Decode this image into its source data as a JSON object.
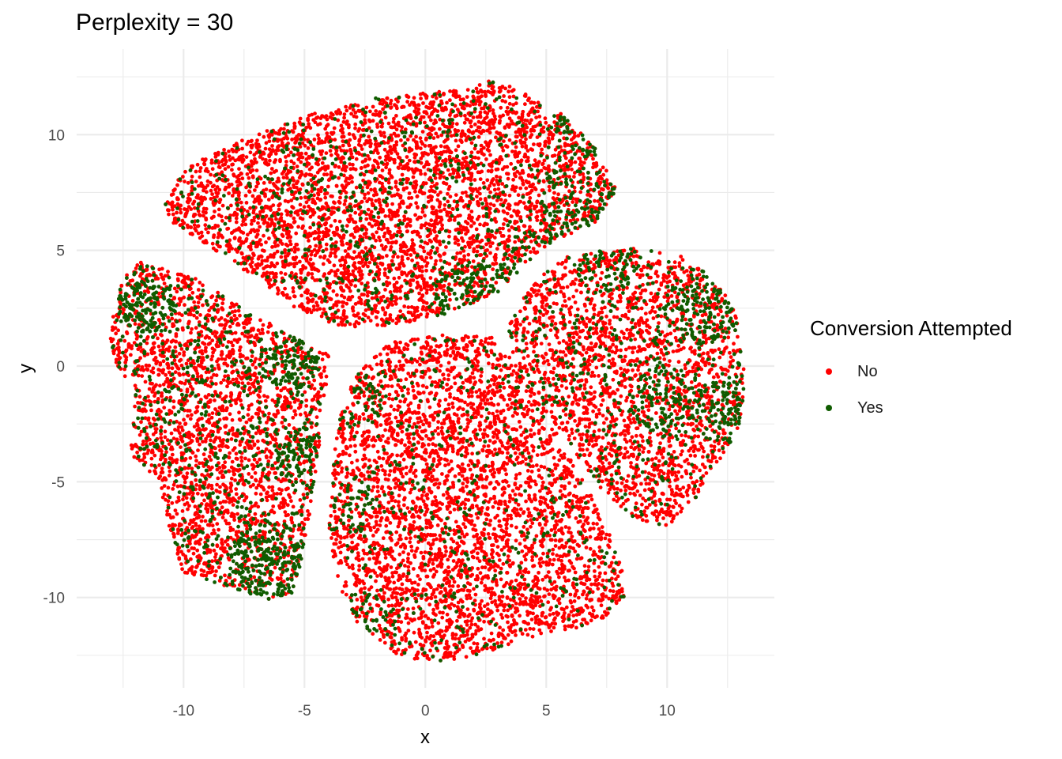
{
  "chart_data": {
    "type": "scatter",
    "title": "Perplexity = 30",
    "xlabel": "x",
    "ylabel": "y",
    "xlim": [
      -12.5,
      12.5
    ],
    "ylim": [
      -12.5,
      12.5
    ],
    "x_ticks": [
      -10,
      -5,
      0,
      5,
      10
    ],
    "y_ticks": [
      -10,
      -5,
      0,
      5,
      10
    ],
    "grid": true,
    "legend": {
      "title": "Conversion Attempted",
      "position": "right",
      "entries": [
        {
          "label": "No",
          "color": "#ff0000"
        },
        {
          "label": "Yes",
          "color": "#0f5c00"
        }
      ]
    },
    "series": [
      {
        "name": "No",
        "color": "#ff0000"
      },
      {
        "name": "Yes",
        "color": "#0f5c00"
      }
    ],
    "clusters": [
      {
        "name": "top",
        "x_range": [
          -10.8,
          7.9
        ],
        "y_range": [
          1.6,
          12.4
        ],
        "points_no": 4200,
        "points_yes": 900
      },
      {
        "name": "left",
        "x_range": [
          -13.1,
          -3.9
        ],
        "y_range": [
          -10.1,
          4.6
        ],
        "points_no": 2600,
        "points_yes": 1300
      },
      {
        "name": "bottom",
        "x_range": [
          -4.0,
          8.3
        ],
        "y_range": [
          -12.8,
          1.4
        ],
        "points_no": 3800,
        "points_yes": 500
      },
      {
        "name": "right",
        "x_range": [
          3.3,
          13.2
        ],
        "y_range": [
          -7.0,
          5.1
        ],
        "points_no": 2200,
        "points_yes": 800
      }
    ]
  }
}
